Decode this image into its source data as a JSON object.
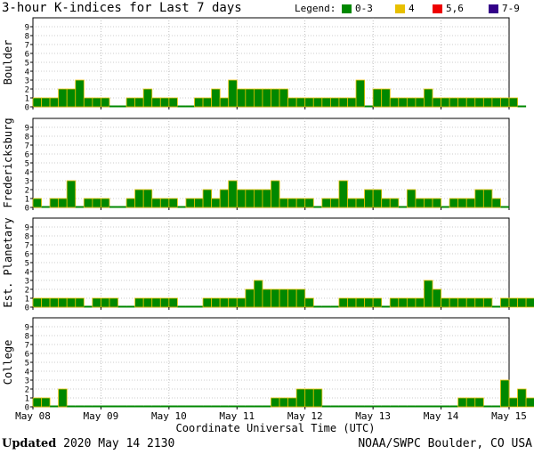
{
  "title": "3-hour K-indices for Last 7 days",
  "legend": {
    "label": "Legend:",
    "items": [
      {
        "label": "0-3",
        "color": "#008800"
      },
      {
        "label": "4",
        "color": "#e8c000"
      },
      {
        "label": "5,6",
        "color": "#ee0000"
      },
      {
        "label": "7-9",
        "color": "#330088"
      }
    ]
  },
  "footer": {
    "updated_label": "Updated",
    "updated_value": "2020 May 14 2130",
    "source": "NOAA/SWPC Boulder, CO USA"
  },
  "chart_data": {
    "type": "bar",
    "xlabel": "Coordinate Universal Time (UTC)",
    "x_ticks": [
      "May 08",
      "May 09",
      "May 10",
      "May 11",
      "May 12",
      "May 13",
      "May 14",
      "May 15"
    ],
    "y_ticks": [
      "0",
      "1",
      "2",
      "3",
      "4",
      "5",
      "6",
      "7",
      "8",
      "9"
    ],
    "ylim": [
      0,
      9
    ],
    "bins_per_day": 8,
    "grid": true,
    "series": [
      {
        "name": "Boulder",
        "values": [
          1,
          1,
          1,
          2,
          2,
          3,
          1,
          1,
          1,
          0,
          0,
          1,
          1,
          2,
          1,
          1,
          1,
          0,
          0,
          1,
          1,
          2,
          1,
          3,
          2,
          2,
          2,
          2,
          2,
          2,
          1,
          1,
          1,
          1,
          1,
          1,
          1,
          1,
          3,
          0,
          2,
          2,
          1,
          1,
          1,
          1,
          2,
          1,
          1,
          1,
          1,
          1,
          1,
          1,
          1,
          1,
          1,
          0
        ]
      },
      {
        "name": "Fredericksburg",
        "values": [
          1,
          0,
          1,
          1,
          3,
          0,
          1,
          1,
          1,
          0,
          0,
          1,
          2,
          2,
          1,
          1,
          1,
          0,
          1,
          1,
          2,
          1,
          2,
          3,
          2,
          2,
          2,
          2,
          3,
          1,
          1,
          1,
          1,
          0,
          1,
          1,
          3,
          1,
          1,
          2,
          2,
          1,
          1,
          0,
          2,
          1,
          1,
          1,
          0,
          1,
          1,
          1,
          2,
          2,
          1,
          0
        ]
      },
      {
        "name": "Est. Planetary",
        "values": [
          1,
          1,
          1,
          1,
          1,
          1,
          0,
          1,
          1,
          1,
          0,
          0,
          1,
          1,
          1,
          1,
          1,
          0,
          0,
          0,
          1,
          1,
          1,
          1,
          1,
          2,
          3,
          2,
          2,
          2,
          2,
          2,
          1,
          0,
          0,
          0,
          1,
          1,
          1,
          1,
          1,
          0,
          1,
          1,
          1,
          1,
          3,
          2,
          1,
          1,
          1,
          1,
          1,
          1,
          0,
          1,
          1,
          1,
          1,
          1,
          1,
          1,
          1,
          1,
          1,
          0
        ]
      },
      {
        "name": "College",
        "values": [
          1,
          1,
          0,
          2,
          0,
          0,
          0,
          0,
          0,
          0,
          0,
          0,
          0,
          0,
          0,
          0,
          0,
          0,
          0,
          0,
          0,
          0,
          0,
          0,
          0,
          0,
          0,
          0,
          1,
          1,
          1,
          2,
          2,
          2,
          0,
          0,
          0,
          0,
          0,
          0,
          0,
          0,
          0,
          0,
          0,
          0,
          0,
          0,
          0,
          0,
          1,
          1,
          1,
          0,
          0,
          3,
          1,
          2,
          1,
          0,
          0,
          0,
          0,
          0,
          0,
          0,
          0,
          0,
          0,
          0
        ]
      }
    ]
  }
}
